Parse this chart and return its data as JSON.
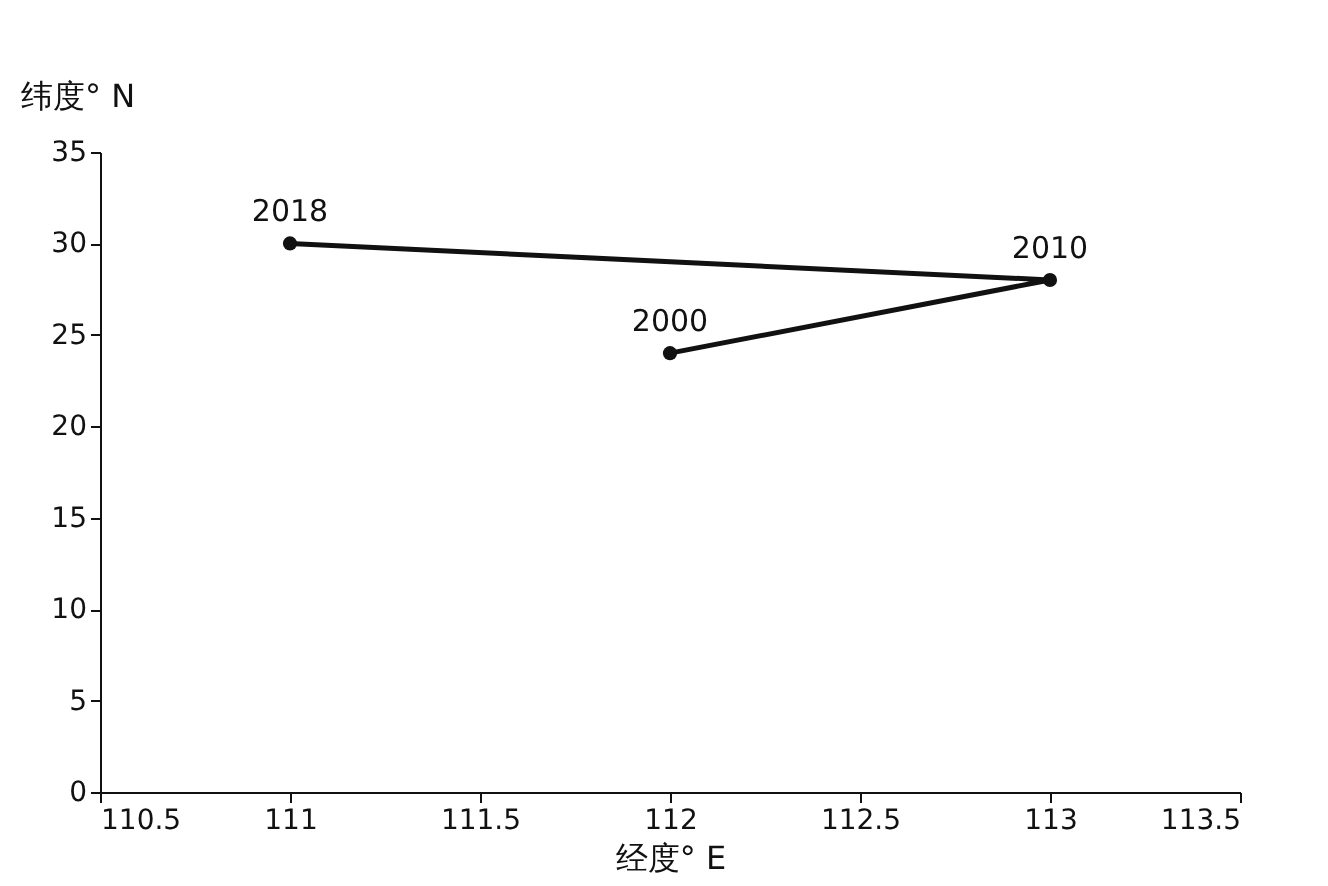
{
  "chart_data": {
    "type": "line",
    "xlabel": "经度° E",
    "ylabel": "纬度° N",
    "x": [
      112,
      113,
      111
    ],
    "series": [
      {
        "color": "#111111",
        "values": [
          24,
          28,
          30
        ]
      }
    ],
    "marker": "circle",
    "line_style": "solid",
    "grid": false,
    "xlim": [
      110.5,
      113.5
    ],
    "xticks": [
      110.5,
      111,
      111.5,
      112,
      112.5,
      113,
      113.5
    ],
    "ylim": [
      0,
      35
    ],
    "yticks": [
      0,
      5,
      10,
      15,
      20,
      25,
      30,
      35
    ],
    "annotations": [
      {
        "text": "2000",
        "x": 112,
        "y": 24
      },
      {
        "text": "2010",
        "x": 113,
        "y": 28
      },
      {
        "text": "2018",
        "x": 111,
        "y": 30
      }
    ]
  }
}
